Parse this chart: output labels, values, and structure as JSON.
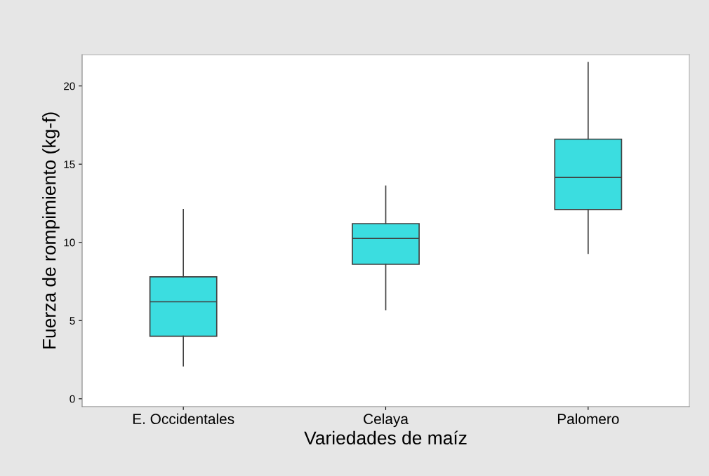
{
  "chart_data": {
    "type": "box",
    "xlabel": "Variedades de maíz",
    "ylabel": "Fuerza de rompimiento (kg-f)",
    "categories": [
      "E. Occidentales",
      "Celaya",
      "Palomero"
    ],
    "color": "#3bdde0",
    "boxes": [
      {
        "low": 2.1,
        "q1": 4.0,
        "median": 6.2,
        "q3": 7.8,
        "high": 12.1
      },
      {
        "low": 5.7,
        "q1": 8.6,
        "median": 10.25,
        "q3": 11.2,
        "high": 13.6
      },
      {
        "low": 9.3,
        "q1": 12.1,
        "median": 14.15,
        "q3": 16.6,
        "high": 21.5
      }
    ],
    "ylim": [
      -0.5,
      22.0
    ],
    "yticks": [
      0,
      5,
      10,
      15,
      20
    ],
    "grid": false,
    "legend": false
  }
}
